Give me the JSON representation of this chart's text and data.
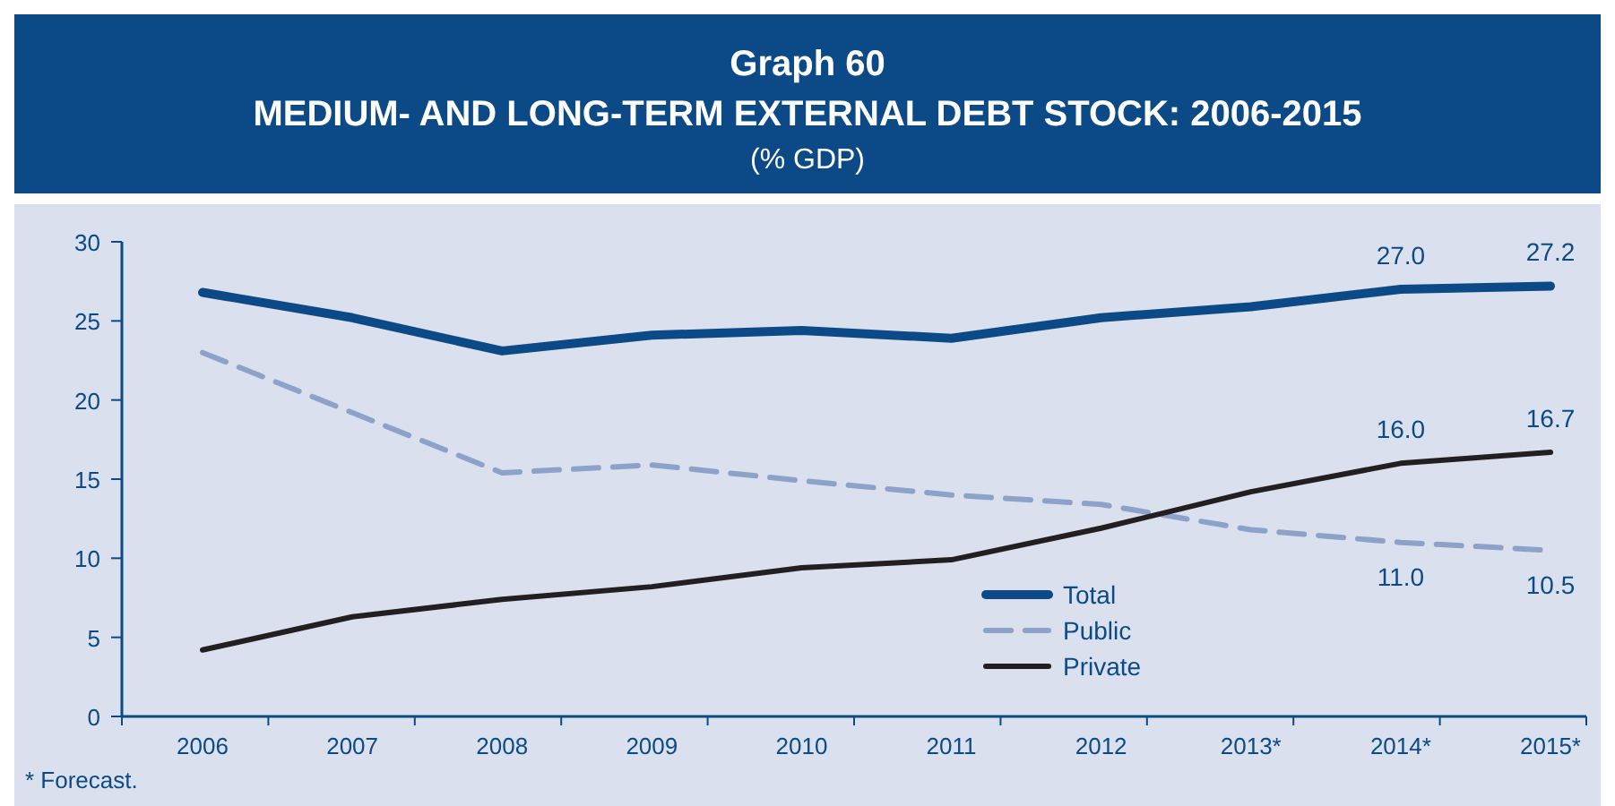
{
  "chart_data": {
    "type": "line",
    "title": "Graph 60",
    "subtitle": "MEDIUM- AND LONG-TERM EXTERNAL DEBT STOCK: 2006-2015",
    "ylabel": "(% GDP)",
    "categories": [
      "2006",
      "2007",
      "2008",
      "2009",
      "2010",
      "2011",
      "2012",
      "2013*",
      "2014*",
      "2015*"
    ],
    "series": [
      {
        "name": "Total",
        "color": "#0b4a86",
        "line_style": "solid",
        "values": [
          26.8,
          25.2,
          23.1,
          24.1,
          24.4,
          23.9,
          25.2,
          25.9,
          27.0,
          27.2
        ],
        "value_labels": [
          null,
          null,
          null,
          null,
          null,
          null,
          null,
          null,
          "27.0",
          "27.2"
        ]
      },
      {
        "name": "Public",
        "color": "#8da2c8",
        "line_style": "dashed",
        "values": [
          23.0,
          19.2,
          15.4,
          15.9,
          14.9,
          14.0,
          13.4,
          11.8,
          11.0,
          10.5
        ],
        "value_labels": [
          null,
          null,
          null,
          null,
          null,
          null,
          null,
          null,
          "11.0",
          "10.5"
        ]
      },
      {
        "name": "Private",
        "color": "#231f20",
        "line_style": "solid",
        "values": [
          4.2,
          6.3,
          7.4,
          8.2,
          9.4,
          9.9,
          11.9,
          14.2,
          16.0,
          16.7
        ],
        "value_labels": [
          null,
          null,
          null,
          null,
          null,
          null,
          null,
          null,
          "16.0",
          "16.7"
        ]
      }
    ],
    "ylim": [
      0,
      30
    ],
    "yticks": [
      0,
      5,
      10,
      15,
      20,
      25,
      30
    ],
    "grid": false,
    "legend": "bottom",
    "marker": "none",
    "annotations": [
      "* Forecast."
    ]
  }
}
